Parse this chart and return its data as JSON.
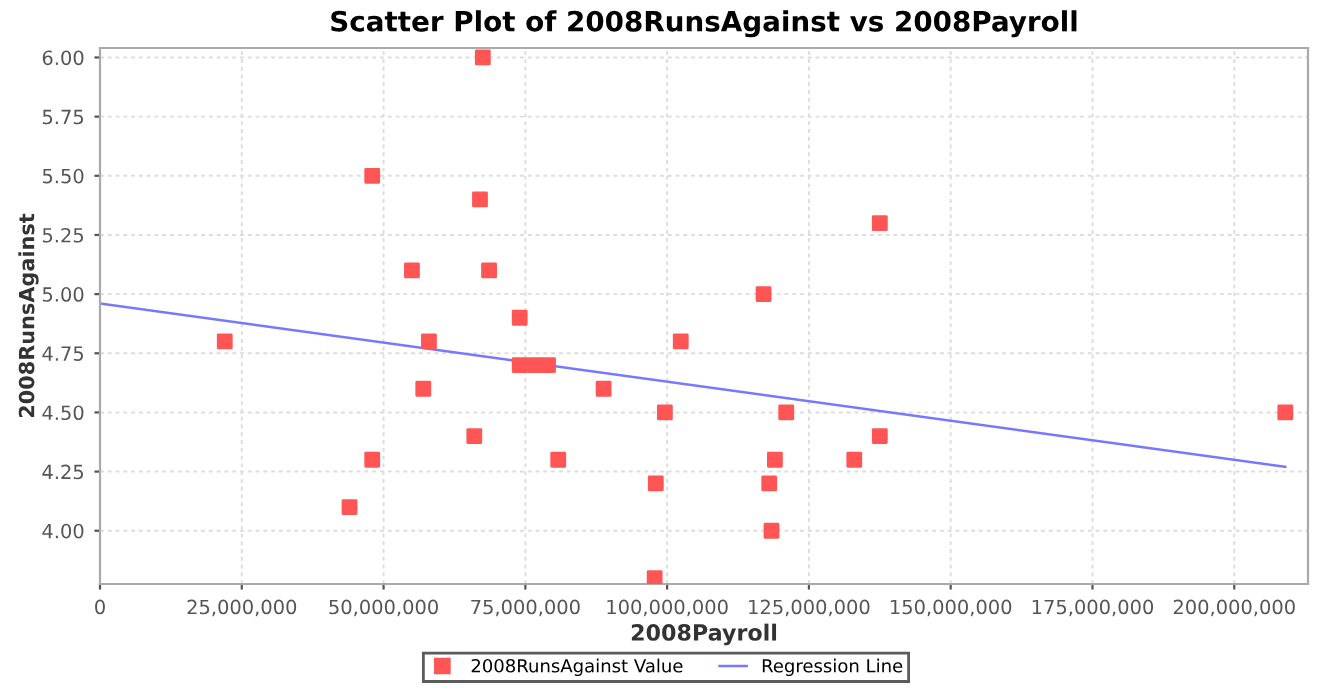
{
  "chart_data": {
    "type": "scatter",
    "title": "Scatter Plot of 2008RunsAgainst vs 2008Payroll",
    "xlabel": "2008Payroll",
    "ylabel": "2008RunsAgainst",
    "series": [
      {
        "name": "2008RunsAgainst Value",
        "color": "#ff5555",
        "marker": "square",
        "x": [
          22000000,
          44000000,
          48000000,
          48000000,
          55000000,
          57000000,
          58000000,
          66000000,
          67000000,
          67500000,
          68600000,
          74000000,
          74000000,
          76600000,
          79000000,
          80800000,
          88800000,
          97800000,
          98000000,
          99600000,
          102400000,
          117000000,
          118000000,
          118400000,
          119000000,
          121000000,
          133000000,
          137500000,
          137500000,
          209000000
        ],
        "values": [
          4.8,
          4.1,
          5.5,
          4.3,
          5.1,
          4.6,
          4.8,
          4.4,
          5.4,
          6.0,
          5.1,
          4.9,
          4.7,
          4.7,
          4.7,
          4.3,
          4.6,
          3.8,
          4.2,
          4.5,
          4.8,
          5.0,
          4.2,
          4.0,
          4.3,
          4.5,
          4.3,
          4.4,
          5.3,
          4.5
        ]
      },
      {
        "name": "Regression Line",
        "type": "line",
        "color": "#7777ff",
        "marker": "none",
        "x": [
          0,
          209000000
        ],
        "values": [
          4.96,
          4.27
        ]
      }
    ],
    "xlim": [
      0,
      213000000
    ],
    "ylim": [
      3.775,
      6.04
    ],
    "xticks": [
      0,
      {
        "value": 25000000,
        "label": "25,000,000"
      },
      {
        "value": 50000000,
        "label": "50,000,000"
      },
      {
        "value": 75000000,
        "label": "75,000,000"
      },
      {
        "value": 100000000,
        "label": "100,000,000"
      },
      {
        "value": 125000000,
        "label": "125,000,000"
      },
      {
        "value": 150000000,
        "label": "150,000,000"
      },
      {
        "value": 175000000,
        "label": "175,000,000"
      },
      {
        "value": 200000000,
        "label": "200,000,000"
      }
    ],
    "yticks": [
      {
        "value": 4.0,
        "label": "4.00"
      },
      {
        "value": 4.25,
        "label": "4.25"
      },
      {
        "value": 4.5,
        "label": "4.50"
      },
      {
        "value": 4.75,
        "label": "4.75"
      },
      {
        "value": 5.0,
        "label": "5.00"
      },
      {
        "value": 5.25,
        "label": "5.25"
      },
      {
        "value": 5.5,
        "label": "5.50"
      },
      {
        "value": 5.75,
        "label": "5.75"
      },
      {
        "value": 6.0,
        "label": "6.00"
      }
    ],
    "grid": true,
    "legend": "bottom"
  }
}
